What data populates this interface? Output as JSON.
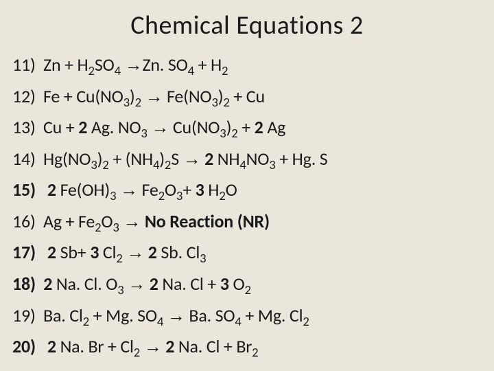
{
  "background_color": "#ebe6dc",
  "text_color": "#1a1a1a",
  "font_family": "Calibri",
  "title": {
    "text": "Chemical Equations 2",
    "fontsize": 38
  },
  "list_fontsize": 26,
  "arrow": "→",
  "equations": [
    {
      "num": "11)",
      "num_bold": false,
      "tokens": [
        {
          "t": "Zn + H"
        },
        {
          "t": "2",
          "sub": true
        },
        {
          "t": "SO"
        },
        {
          "t": "4",
          "sub": true
        },
        {
          "t": " "
        },
        {
          "t": "→",
          "arrow": true
        },
        {
          "t": "Zn. SO"
        },
        {
          "t": "4",
          "sub": true
        },
        {
          "t": " + H"
        },
        {
          "t": "2",
          "sub": true
        }
      ]
    },
    {
      "num": "12)",
      "num_bold": false,
      "tokens": [
        {
          "t": "Fe + Cu(NO"
        },
        {
          "t": "3",
          "sub": true
        },
        {
          "t": ")"
        },
        {
          "t": "2",
          "sub": true
        },
        {
          "t": " "
        },
        {
          "t": "→",
          "arrow": true
        },
        {
          "t": " Fe(NO"
        },
        {
          "t": "3",
          "sub": true
        },
        {
          "t": ")"
        },
        {
          "t": "2",
          "sub": true
        },
        {
          "t": " + Cu"
        }
      ]
    },
    {
      "num": "13)",
      "num_bold": false,
      "tokens": [
        {
          "t": "Cu + "
        },
        {
          "t": "2",
          "bold": true
        },
        {
          "t": " Ag. NO"
        },
        {
          "t": "3",
          "sub": true
        },
        {
          "t": " "
        },
        {
          "t": "→",
          "arrow": true
        },
        {
          "t": " Cu(NO"
        },
        {
          "t": "3",
          "sub": true
        },
        {
          "t": ")"
        },
        {
          "t": "2",
          "sub": true
        },
        {
          "t": " + "
        },
        {
          "t": "2",
          "bold": true
        },
        {
          "t": " Ag"
        }
      ]
    },
    {
      "num": "14)",
      "num_bold": false,
      "tokens": [
        {
          "t": "Hg(NO"
        },
        {
          "t": "3",
          "sub": true
        },
        {
          "t": ")"
        },
        {
          "t": "2",
          "sub": true
        },
        {
          "t": " + (NH"
        },
        {
          "t": "4",
          "sub": true
        },
        {
          "t": ")"
        },
        {
          "t": "2",
          "sub": true
        },
        {
          "t": "S "
        },
        {
          "t": "→",
          "arrow": true
        },
        {
          "t": " "
        },
        {
          "t": "2",
          "bold": true
        },
        {
          "t": " NH"
        },
        {
          "t": "4",
          "sub": true
        },
        {
          "t": "NO"
        },
        {
          "t": "3",
          "sub": true
        },
        {
          "t": " + Hg. S"
        }
      ]
    },
    {
      "num": "15)",
      "num_bold": true,
      "tokens": [
        {
          "t": " "
        },
        {
          "t": "2",
          "bold": true
        },
        {
          "t": " Fe(OH)"
        },
        {
          "t": "3",
          "sub": true
        },
        {
          "t": "  "
        },
        {
          "t": "→",
          "arrow": true
        },
        {
          "t": " Fe"
        },
        {
          "t": "2",
          "sub": true
        },
        {
          "t": "O"
        },
        {
          "t": "3",
          "sub": true
        },
        {
          "t": "+ "
        },
        {
          "t": "3",
          "bold": true
        },
        {
          "t": " H"
        },
        {
          "t": "2",
          "sub": true
        },
        {
          "t": "O"
        }
      ]
    },
    {
      "num": "16)",
      "num_bold": false,
      "tokens": [
        {
          "t": "Ag + Fe"
        },
        {
          "t": "2",
          "sub": true
        },
        {
          "t": "O"
        },
        {
          "t": "3",
          "sub": true
        },
        {
          "t": " "
        },
        {
          "t": "→",
          "arrow": true
        },
        {
          "t": " "
        },
        {
          "t": "No Reaction (NR)",
          "bold": true
        }
      ]
    },
    {
      "num": "17)",
      "num_bold": true,
      "tokens": [
        {
          "t": " "
        },
        {
          "t": "2",
          "bold": true
        },
        {
          "t": " Sb+ "
        },
        {
          "t": "3",
          "bold": true
        },
        {
          "t": " Cl"
        },
        {
          "t": "2",
          "sub": true
        },
        {
          "t": " "
        },
        {
          "t": "→",
          "arrow": true
        },
        {
          "t": " "
        },
        {
          "t": "2",
          "bold": true
        },
        {
          "t": " Sb. Cl"
        },
        {
          "t": "3",
          "sub": true
        }
      ]
    },
    {
      "num": "18)",
      "num_bold": true,
      "tokens": [
        {
          "t": "2",
          "bold": true
        },
        {
          "t": " Na. Cl. O"
        },
        {
          "t": "3",
          "sub": true
        },
        {
          "t": " "
        },
        {
          "t": "→",
          "arrow": true
        },
        {
          "t": " "
        },
        {
          "t": "2",
          "bold": true
        },
        {
          "t": " Na. Cl + "
        },
        {
          "t": "3",
          "bold": true
        },
        {
          "t": " O"
        },
        {
          "t": "2",
          "sub": true
        }
      ]
    },
    {
      "num": "19)",
      "num_bold": false,
      "tokens": [
        {
          "t": "Ba. Cl"
        },
        {
          "t": "2",
          "sub": true
        },
        {
          "t": " + Mg. SO"
        },
        {
          "t": "4",
          "sub": true
        },
        {
          "t": " "
        },
        {
          "t": "→",
          "arrow": true
        },
        {
          "t": " Ba. SO"
        },
        {
          "t": "4",
          "sub": true
        },
        {
          "t": " + Mg. Cl"
        },
        {
          "t": "2",
          "sub": true
        }
      ]
    },
    {
      "num": "20)",
      "num_bold": true,
      "tokens": [
        {
          "t": " "
        },
        {
          "t": "2",
          "bold": true
        },
        {
          "t": " Na. Br + Cl"
        },
        {
          "t": "2",
          "sub": true
        },
        {
          "t": " "
        },
        {
          "t": "→",
          "arrow": true
        },
        {
          "t": " "
        },
        {
          "t": "2",
          "bold": true
        },
        {
          "t": " Na. Cl + Br"
        },
        {
          "t": "2",
          "sub": true
        }
      ]
    }
  ]
}
